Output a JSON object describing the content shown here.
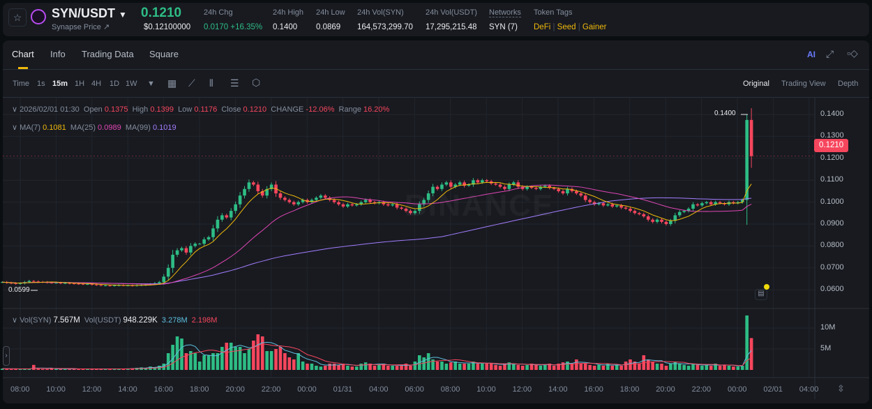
{
  "header": {
    "pair": "SYN/USDT",
    "subtitle": "Synapse Price ↗",
    "price": "0.1210",
    "price_usd": "$0.12100000",
    "stats": [
      {
        "label": "24h Chg",
        "value": "0.0170 +16.35%",
        "color": "#2ebd85"
      },
      {
        "label": "24h High",
        "value": "0.1400"
      },
      {
        "label": "24h Low",
        "value": "0.0869"
      },
      {
        "label": "24h Vol(SYN)",
        "value": "164,573,299.70"
      },
      {
        "label": "24h Vol(USDT)",
        "value": "17,295,215.48"
      },
      {
        "label": "Networks",
        "value": "SYN (7)"
      }
    ],
    "tags_label": "Token Tags",
    "tags": [
      "DeFi",
      "Seed",
      "Gainer"
    ]
  },
  "tabs": [
    "Chart",
    "Info",
    "Trading Data",
    "Square"
  ],
  "toolbar": {
    "intervals": [
      "Time",
      "1s",
      "15m",
      "1H",
      "4H",
      "1D",
      "1W"
    ],
    "active": "15m",
    "views": [
      "Original",
      "Trading View",
      "Depth"
    ],
    "active_view": "Original",
    "ai_label": "AI"
  },
  "legend": {
    "date": "2026/02/01 01:30",
    "open_label": "Open",
    "open": "0.1375",
    "high_label": "High",
    "high": "0.1399",
    "low_label": "Low",
    "low": "0.1176",
    "close_label": "Close",
    "close": "0.1210",
    "change_label": "CHANGE",
    "change": "-12.06%",
    "range_label": "Range",
    "range": "16.20%",
    "ma7_label": "MA(7)",
    "ma7": "0.1081",
    "ma25_label": "MA(25)",
    "ma25": "0.0989",
    "ma99_label": "MA(99)",
    "ma99": "0.1019"
  },
  "vol_legend": {
    "syn_label": "Vol(SYN)",
    "syn": "7.567M",
    "usdt_label": "Vol(USDT)",
    "usdt": "948.229K",
    "ma1": "3.278M",
    "ma2": "2.198M"
  },
  "watermark": "BINANCE",
  "colors": {
    "up": "#2ebd85",
    "down": "#f6465d",
    "ma7": "#f0b90b",
    "ma25": "#e046b4",
    "ma99": "#a47dff",
    "vol_ma1": "#5ec0e0",
    "vol_ma2": "#f6465d"
  },
  "chart_data": {
    "type": "candlestick",
    "interval": "15m",
    "price_ticks": [
      "0.1400",
      "0.1300",
      "0.1200",
      "0.1100",
      "0.1000",
      "0.0900",
      "0.0800",
      "0.0700",
      "0.0600"
    ],
    "price_range": [
      0.0565,
      0.144
    ],
    "last_price": "0.1210",
    "max_marker": "0.1400",
    "min_marker": "0.0599",
    "vol_ticks": [
      "10M",
      "5M"
    ],
    "time_labels": [
      "08:00",
      "10:00",
      "12:00",
      "14:00",
      "16:00",
      "18:00",
      "20:00",
      "22:00",
      "00:00",
      "01/31",
      "04:00",
      "06:00",
      "08:00",
      "10:00",
      "12:00",
      "14:00",
      "16:00",
      "18:00",
      "20:00",
      "22:00",
      "00:00",
      "02/01",
      "04:00"
    ],
    "closes": [
      0.0635,
      0.0632,
      0.063,
      0.0628,
      0.063,
      0.0635,
      0.064,
      0.0638,
      0.0636,
      0.0635,
      0.0633,
      0.0632,
      0.0632,
      0.063,
      0.0631,
      0.0629,
      0.0628,
      0.0627,
      0.0626,
      0.0626,
      0.0624,
      0.0622,
      0.062,
      0.062,
      0.0619,
      0.062,
      0.0621,
      0.062,
      0.062,
      0.0619,
      0.0621,
      0.0622,
      0.0624,
      0.0626,
      0.063,
      0.0635,
      0.066,
      0.07,
      0.076,
      0.078,
      0.079,
      0.077,
      0.08,
      0.081,
      0.081,
      0.083,
      0.084,
      0.088,
      0.092,
      0.094,
      0.093,
      0.096,
      0.099,
      0.103,
      0.106,
      0.109,
      0.108,
      0.105,
      0.103,
      0.106,
      0.108,
      0.104,
      0.102,
      0.101,
      0.1,
      0.099,
      0.1,
      0.101,
      0.1,
      0.101,
      0.102,
      0.103,
      0.102,
      0.101,
      0.1,
      0.099,
      0.098,
      0.099,
      0.0985,
      0.099,
      0.1,
      0.101,
      0.1,
      0.0995,
      0.1,
      0.099,
      0.0985,
      0.099,
      0.0975,
      0.097,
      0.096,
      0.095,
      0.096,
      0.099,
      0.101,
      0.104,
      0.107,
      0.106,
      0.108,
      0.109,
      0.107,
      0.108,
      0.109,
      0.1075,
      0.108,
      0.11,
      0.109,
      0.11,
      0.1095,
      0.1085,
      0.108,
      0.107,
      0.106,
      0.108,
      0.109,
      0.107,
      0.106,
      0.107,
      0.1065,
      0.106,
      0.107,
      0.1075,
      0.1065,
      0.106,
      0.105,
      0.104,
      0.106,
      0.105,
      0.104,
      0.103,
      0.101,
      0.1,
      0.099,
      0.0995,
      0.0985,
      0.099,
      0.098,
      0.0985,
      0.0975,
      0.097,
      0.096,
      0.095,
      0.0945,
      0.0935,
      0.092,
      0.091,
      0.092,
      0.091,
      0.09,
      0.0915,
      0.094,
      0.0955,
      0.096,
      0.097,
      0.099,
      0.0985,
      0.0995,
      0.1,
      0.099,
      0.1,
      0.0995,
      0.099,
      0.1,
      0.0995,
      0.1,
      0.101,
      0.1375,
      0.121
    ],
    "volumes_m": [
      0.3,
      0.3,
      0.2,
      0.3,
      0.2,
      0.3,
      0.2,
      1.2,
      0.3,
      0.2,
      0.2,
      0.3,
      0.3,
      0.2,
      0.2,
      0.3,
      0.2,
      0.3,
      0.2,
      0.2,
      0.2,
      0.3,
      0.2,
      0.2,
      0.3,
      0.2,
      0.3,
      0.3,
      0.3,
      0.4,
      0.5,
      0.6,
      0.5,
      0.8,
      0.6,
      1.0,
      1.5,
      4.0,
      6.0,
      8.0,
      7.5,
      4.0,
      4.5,
      4.0,
      2.0,
      3.5,
      3.5,
      4.0,
      4.0,
      5.5,
      6.5,
      6.5,
      5.5,
      5.5,
      4.0,
      5.0,
      7.0,
      8.5,
      8.0,
      4.5,
      4.5,
      5.0,
      5.5,
      4.0,
      3.0,
      2.5,
      4.0,
      2.0,
      1.5,
      1.5,
      1.0,
      0.8,
      1.0,
      1.5,
      1.5,
      1.2,
      1.5,
      1.0,
      0.8,
      0.8,
      1.5,
      1.8,
      1.5,
      1.0,
      1.2,
      1.5,
      1.0,
      1.0,
      1.0,
      1.0,
      1.5,
      1.0,
      2.0,
      3.5,
      3.0,
      4.0,
      2.5,
      2.0,
      2.0,
      1.5,
      1.8,
      2.0,
      1.5,
      1.5,
      1.5,
      2.0,
      1.5,
      1.5,
      1.5,
      1.5,
      1.2,
      1.0,
      1.5,
      1.8,
      1.5,
      1.2,
      1.0,
      1.2,
      1.5,
      1.2,
      1.0,
      1.2,
      1.5,
      1.0,
      1.5,
      1.8,
      2.0,
      1.5,
      2.5,
      1.5,
      1.5,
      1.2,
      1.0,
      1.2,
      1.0,
      1.5,
      1.0,
      1.2,
      1.0,
      2.0,
      2.5,
      2.0,
      1.5,
      3.5,
      2.5,
      2.0,
      1.5,
      1.5,
      1.0,
      1.5,
      2.0,
      1.5,
      1.2,
      1.0,
      1.5,
      1.2,
      1.0,
      1.2,
      1.0,
      1.5,
      1.0,
      1.2,
      1.0,
      0.8,
      0.8,
      1.0,
      13.0,
      7.6
    ]
  }
}
